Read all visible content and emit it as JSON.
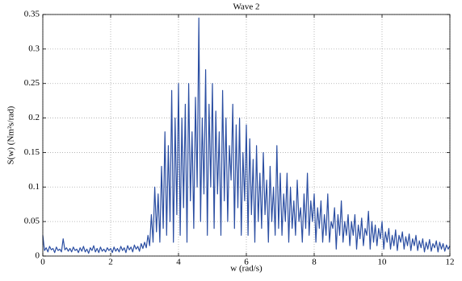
{
  "chart_data": {
    "type": "line",
    "title": "Wave 2",
    "x_label": "w (rad/s)",
    "y_label": "S(w) (Nm²s/rad)",
    "color": "#2b4ea2",
    "grid": true,
    "xlim": [
      0,
      12
    ],
    "ylim": [
      0,
      0.35
    ],
    "xticks": [
      0,
      2,
      4,
      6,
      8,
      10,
      12
    ],
    "yticks": [
      0,
      0.05,
      0.1,
      0.15,
      0.2,
      0.25,
      0.3,
      0.35
    ],
    "x": [
      0,
      0.05,
      0.1,
      0.15,
      0.2,
      0.25,
      0.3,
      0.35,
      0.4,
      0.45,
      0.5,
      0.55,
      0.6,
      0.65,
      0.7,
      0.75,
      0.8,
      0.85,
      0.9,
      0.95,
      1,
      1.05,
      1.1,
      1.15,
      1.2,
      1.25,
      1.3,
      1.35,
      1.4,
      1.45,
      1.5,
      1.55,
      1.6,
      1.65,
      1.7,
      1.75,
      1.8,
      1.85,
      1.9,
      1.95,
      2,
      2.05,
      2.1,
      2.15,
      2.2,
      2.25,
      2.3,
      2.35,
      2.4,
      2.45,
      2.5,
      2.55,
      2.6,
      2.65,
      2.7,
      2.75,
      2.8,
      2.85,
      2.9,
      2.95,
      3,
      3.05,
      3.1,
      3.15,
      3.2,
      3.25,
      3.3,
      3.35,
      3.4,
      3.45,
      3.5,
      3.55,
      3.6,
      3.65,
      3.7,
      3.75,
      3.8,
      3.85,
      3.9,
      3.95,
      4,
      4.05,
      4.1,
      4.15,
      4.2,
      4.25,
      4.3,
      4.35,
      4.4,
      4.45,
      4.5,
      4.55,
      4.6,
      4.65,
      4.7,
      4.75,
      4.8,
      4.85,
      4.9,
      4.95,
      5,
      5.05,
      5.1,
      5.15,
      5.2,
      5.25,
      5.3,
      5.35,
      5.4,
      5.45,
      5.5,
      5.55,
      5.6,
      5.65,
      5.7,
      5.75,
      5.8,
      5.85,
      5.9,
      5.95,
      6,
      6.05,
      6.1,
      6.15,
      6.2,
      6.25,
      6.3,
      6.35,
      6.4,
      6.45,
      6.5,
      6.55,
      6.6,
      6.65,
      6.7,
      6.75,
      6.8,
      6.85,
      6.9,
      6.95,
      7,
      7.05,
      7.1,
      7.15,
      7.2,
      7.25,
      7.3,
      7.35,
      7.4,
      7.45,
      7.5,
      7.55,
      7.6,
      7.65,
      7.7,
      7.75,
      7.8,
      7.85,
      7.9,
      7.95,
      8,
      8.05,
      8.1,
      8.15,
      8.2,
      8.25,
      8.3,
      8.35,
      8.4,
      8.45,
      8.5,
      8.55,
      8.6,
      8.65,
      8.7,
      8.75,
      8.8,
      8.85,
      8.9,
      8.95,
      9,
      9.05,
      9.1,
      9.15,
      9.2,
      9.25,
      9.3,
      9.35,
      9.4,
      9.45,
      9.5,
      9.55,
      9.6,
      9.65,
      9.7,
      9.75,
      9.8,
      9.85,
      9.9,
      9.95,
      10,
      10.05,
      10.1,
      10.15,
      10.2,
      10.25,
      10.3,
      10.35,
      10.4,
      10.45,
      10.5,
      10.55,
      10.6,
      10.65,
      10.7,
      10.75,
      10.8,
      10.85,
      10.9,
      10.95,
      11,
      11.05,
      11.1,
      11.15,
      11.2,
      11.25,
      11.3,
      11.35,
      11.4,
      11.45,
      11.5,
      11.55,
      11.6,
      11.65,
      11.7,
      11.75,
      11.8,
      11.85,
      11.9,
      11.95,
      12
    ],
    "values": [
      0.03,
      0.008,
      0.012,
      0.006,
      0.014,
      0.009,
      0.011,
      0.005,
      0.013,
      0.008,
      0.01,
      0.006,
      0.025,
      0.009,
      0.012,
      0.007,
      0.011,
      0.006,
      0.013,
      0.008,
      0.01,
      0.005,
      0.012,
      0.007,
      0.014,
      0.006,
      0.01,
      0.004,
      0.012,
      0.008,
      0.015,
      0.006,
      0.011,
      0.005,
      0.013,
      0.007,
      0.01,
      0.006,
      0.012,
      0.008,
      0.011,
      0.005,
      0.013,
      0.007,
      0.011,
      0.006,
      0.014,
      0.008,
      0.012,
      0.005,
      0.015,
      0.009,
      0.013,
      0.006,
      0.016,
      0.01,
      0.014,
      0.007,
      0.018,
      0.011,
      0.02,
      0.012,
      0.03,
      0.015,
      0.06,
      0.02,
      0.1,
      0.035,
      0.09,
      0.02,
      0.13,
      0.04,
      0.18,
      0.03,
      0.16,
      0.05,
      0.24,
      0.02,
      0.2,
      0.06,
      0.25,
      0.03,
      0.2,
      0.07,
      0.22,
      0.02,
      0.25,
      0.08,
      0.18,
      0.04,
      0.23,
      0.1,
      0.345,
      0.05,
      0.2,
      0.09,
      0.27,
      0.03,
      0.22,
      0.1,
      0.25,
      0.04,
      0.21,
      0.09,
      0.18,
      0.03,
      0.24,
      0.08,
      0.2,
      0.05,
      0.16,
      0.11,
      0.22,
      0.04,
      0.19,
      0.07,
      0.2,
      0.03,
      0.15,
      0.08,
      0.19,
      0.03,
      0.17,
      0.06,
      0.14,
      0.02,
      0.16,
      0.05,
      0.12,
      0.04,
      0.15,
      0.06,
      0.11,
      0.02,
      0.13,
      0.05,
      0.1,
      0.03,
      0.16,
      0.04,
      0.12,
      0.03,
      0.09,
      0.05,
      0.12,
      0.02,
      0.1,
      0.04,
      0.08,
      0.03,
      0.11,
      0.05,
      0.07,
      0.02,
      0.09,
      0.04,
      0.12,
      0.03,
      0.08,
      0.05,
      0.09,
      0.02,
      0.07,
      0.04,
      0.08,
      0.02,
      0.06,
      0.03,
      0.09,
      0.02,
      0.05,
      0.04,
      0.07,
      0.01,
      0.06,
      0.03,
      0.08,
      0.02,
      0.05,
      0.03,
      0.06,
      0.015,
      0.05,
      0.03,
      0.06,
      0.01,
      0.045,
      0.025,
      0.055,
      0.015,
      0.04,
      0.03,
      0.065,
      0.01,
      0.05,
      0.02,
      0.045,
      0.015,
      0.04,
      0.025,
      0.05,
      0.01,
      0.035,
      0.02,
      0.04,
      0.01,
      0.03,
      0.015,
      0.038,
      0.008,
      0.03,
      0.02,
      0.035,
      0.01,
      0.028,
      0.015,
      0.032,
      0.008,
      0.025,
      0.015,
      0.03,
      0.008,
      0.022,
      0.012,
      0.025,
      0.006,
      0.02,
      0.01,
      0.024,
      0.007,
      0.018,
      0.012,
      0.022,
      0.006,
      0.02,
      0.01,
      0.018,
      0.007,
      0.016,
      0.01,
      0.015
    ]
  }
}
